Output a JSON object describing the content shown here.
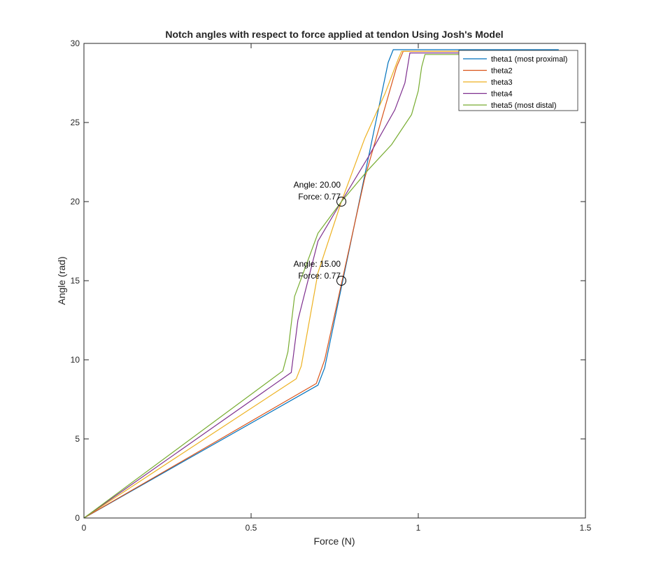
{
  "chart_data": {
    "type": "line",
    "title": "Notch angles with respect to force applied at tendon Using Josh's Model",
    "xlabel": "Force (N)",
    "ylabel": "Angle (rad)",
    "xlim": [
      0,
      1.5
    ],
    "ylim": [
      0,
      30
    ],
    "xticks": [
      0,
      0.5,
      1,
      1.5
    ],
    "xtick_labels": [
      "0",
      "0.5",
      "1",
      "1.5"
    ],
    "yticks": [
      0,
      5,
      10,
      15,
      20,
      25,
      30
    ],
    "ytick_labels": [
      "0",
      "5",
      "10",
      "15",
      "20",
      "25",
      "30"
    ],
    "grid": false,
    "legend_position": "top-right",
    "series": [
      {
        "name": "theta1 (most proximal)",
        "color": "#0072BD",
        "x": [
          0,
          0.7,
          0.72,
          0.91,
          0.925,
          1.42
        ],
        "y": [
          0,
          8.4,
          9.5,
          28.8,
          29.6,
          29.6
        ]
      },
      {
        "name": "theta2",
        "color": "#D95319",
        "x": [
          0,
          0.695,
          0.72,
          0.84,
          0.935,
          0.955,
          1.42
        ],
        "y": [
          0,
          8.5,
          10.0,
          21.5,
          28.5,
          29.5,
          29.5
        ]
      },
      {
        "name": "theta3",
        "color": "#EDB120",
        "x": [
          0,
          0.635,
          0.65,
          0.7,
          0.77,
          0.84,
          0.9,
          0.94,
          0.95,
          1.42
        ],
        "y": [
          0,
          8.8,
          9.6,
          15.5,
          20.0,
          24.0,
          26.8,
          29.0,
          29.5,
          29.5
        ]
      },
      {
        "name": "theta4",
        "color": "#7E2F8E",
        "x": [
          0,
          0.62,
          0.64,
          0.7,
          0.77,
          0.85,
          0.93,
          0.96,
          0.975,
          1.42
        ],
        "y": [
          0,
          9.2,
          12.5,
          17.5,
          20.0,
          22.8,
          25.8,
          27.5,
          29.4,
          29.4
        ]
      },
      {
        "name": "theta5 (most distal)",
        "color": "#77AC30",
        "x": [
          0,
          0.595,
          0.61,
          0.63,
          0.7,
          0.77,
          0.85,
          0.92,
          0.98,
          1.0,
          1.01,
          1.02,
          1.42
        ],
        "y": [
          0,
          9.3,
          10.5,
          14.0,
          18.0,
          20.0,
          22.0,
          23.6,
          25.5,
          27.0,
          28.5,
          29.3,
          29.3
        ]
      }
    ],
    "annotations": [
      {
        "line1": "Angle: 20.00",
        "line2": "Force: 0.77",
        "x": 0.77,
        "y": 20.0
      },
      {
        "line1": "Angle: 15.00",
        "line2": "Force: 0.77",
        "x": 0.77,
        "y": 15.0
      }
    ]
  }
}
